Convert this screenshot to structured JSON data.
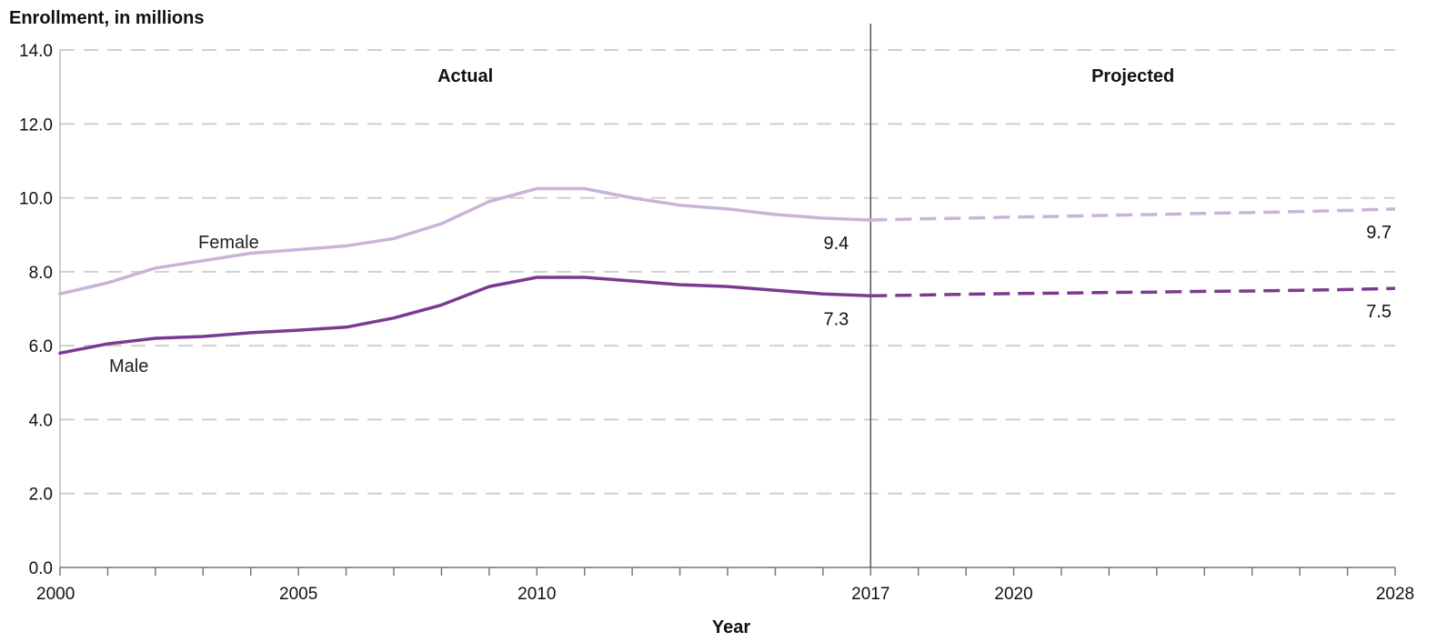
{
  "chart_data": {
    "type": "line",
    "ylabel": "Enrollment, in millions",
    "xlabel": "Year",
    "ylim": [
      0,
      14
    ],
    "xlim": [
      2000,
      2028
    ],
    "y_ticks": [
      "0.0",
      "2.0",
      "4.0",
      "6.0",
      "8.0",
      "10.0",
      "12.0",
      "14.0"
    ],
    "x_tick_labels": [
      "2000",
      "2005",
      "2010",
      "2017",
      "2020",
      "2028"
    ],
    "divider_year": 2017,
    "sections": {
      "actual": "Actual",
      "projected": "Projected"
    },
    "grid": "horizontal dashed",
    "colors": {
      "female": "#c9b3d9",
      "male": "#7b3a8f"
    },
    "series": [
      {
        "name": "Female",
        "color": "#c9b3d9",
        "actual": {
          "x": [
            2000,
            2001,
            2002,
            2003,
            2004,
            2005,
            2006,
            2007,
            2008,
            2009,
            2010,
            2011,
            2012,
            2013,
            2014,
            2015,
            2016,
            2017
          ],
          "y": [
            7.4,
            7.7,
            8.1,
            8.3,
            8.5,
            8.6,
            8.7,
            8.9,
            9.3,
            9.9,
            10.25,
            10.25,
            10.0,
            9.8,
            9.7,
            9.55,
            9.45,
            9.4
          ]
        },
        "projected": {
          "x": [
            2017,
            2018,
            2019,
            2020,
            2021,
            2022,
            2023,
            2024,
            2025,
            2026,
            2027,
            2028
          ],
          "y": [
            9.4,
            9.43,
            9.45,
            9.48,
            9.5,
            9.53,
            9.55,
            9.58,
            9.6,
            9.63,
            9.66,
            9.7
          ]
        },
        "end_values": [
          "9.4",
          "9.7"
        ]
      },
      {
        "name": "Male",
        "color": "#7b3a8f",
        "actual": {
          "x": [
            2000,
            2001,
            2002,
            2003,
            2004,
            2005,
            2006,
            2007,
            2008,
            2009,
            2010,
            2011,
            2012,
            2013,
            2014,
            2015,
            2016,
            2017
          ],
          "y": [
            5.8,
            6.05,
            6.2,
            6.25,
            6.35,
            6.42,
            6.5,
            6.75,
            7.1,
            7.6,
            7.85,
            7.85,
            7.75,
            7.65,
            7.6,
            7.5,
            7.4,
            7.35
          ]
        },
        "projected": {
          "x": [
            2017,
            2018,
            2019,
            2020,
            2021,
            2022,
            2023,
            2024,
            2025,
            2026,
            2027,
            2028
          ],
          "y": [
            7.35,
            7.37,
            7.39,
            7.41,
            7.42,
            7.44,
            7.45,
            7.47,
            7.48,
            7.5,
            7.52,
            7.55
          ]
        },
        "end_values": [
          "7.3",
          "7.5"
        ]
      }
    ]
  }
}
